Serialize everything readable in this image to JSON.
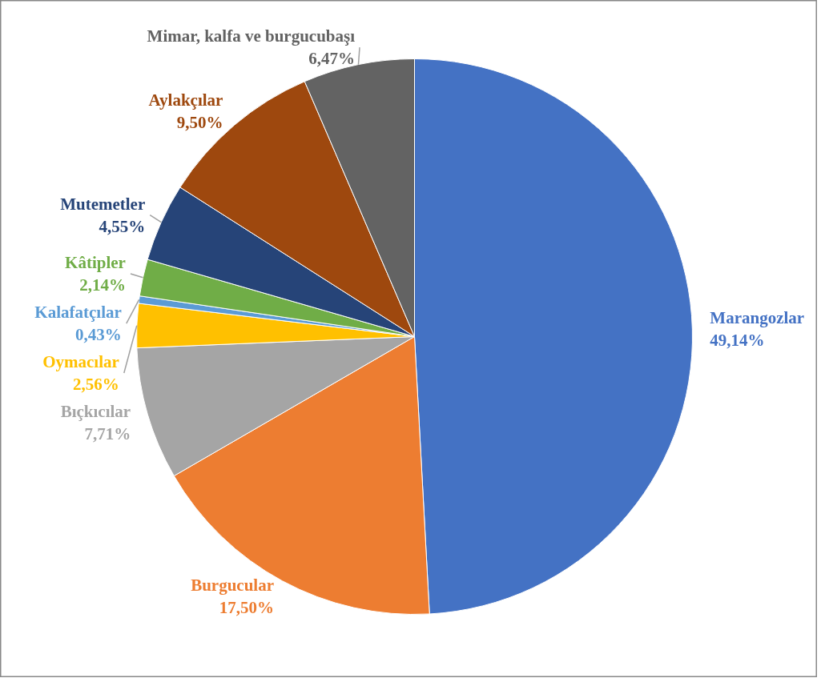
{
  "chart_data": {
    "type": "pie",
    "categories": [
      "Marangozlar",
      "Burgucular",
      "Bıçkıcılar",
      "Oymacılar",
      "Kalafatçılar",
      "Kâtipler",
      "Mutemetler",
      "Aylakçılar",
      "Mimar, kalfa ve burgucubaşı"
    ],
    "values": [
      49.14,
      17.5,
      7.71,
      2.56,
      0.43,
      2.14,
      4.55,
      9.5,
      6.47
    ],
    "colors": [
      "#4472c4",
      "#ed7d31",
      "#a5a5a5",
      "#ffc000",
      "#5b9bd5",
      "#70ad47",
      "#264478",
      "#9e480e",
      "#636363"
    ],
    "value_labels": [
      "49,14%",
      "17,50%",
      "7,71%",
      "2,56%",
      "0,43%",
      "2,14%",
      "4,55%",
      "9,50%",
      "6,47%"
    ]
  }
}
